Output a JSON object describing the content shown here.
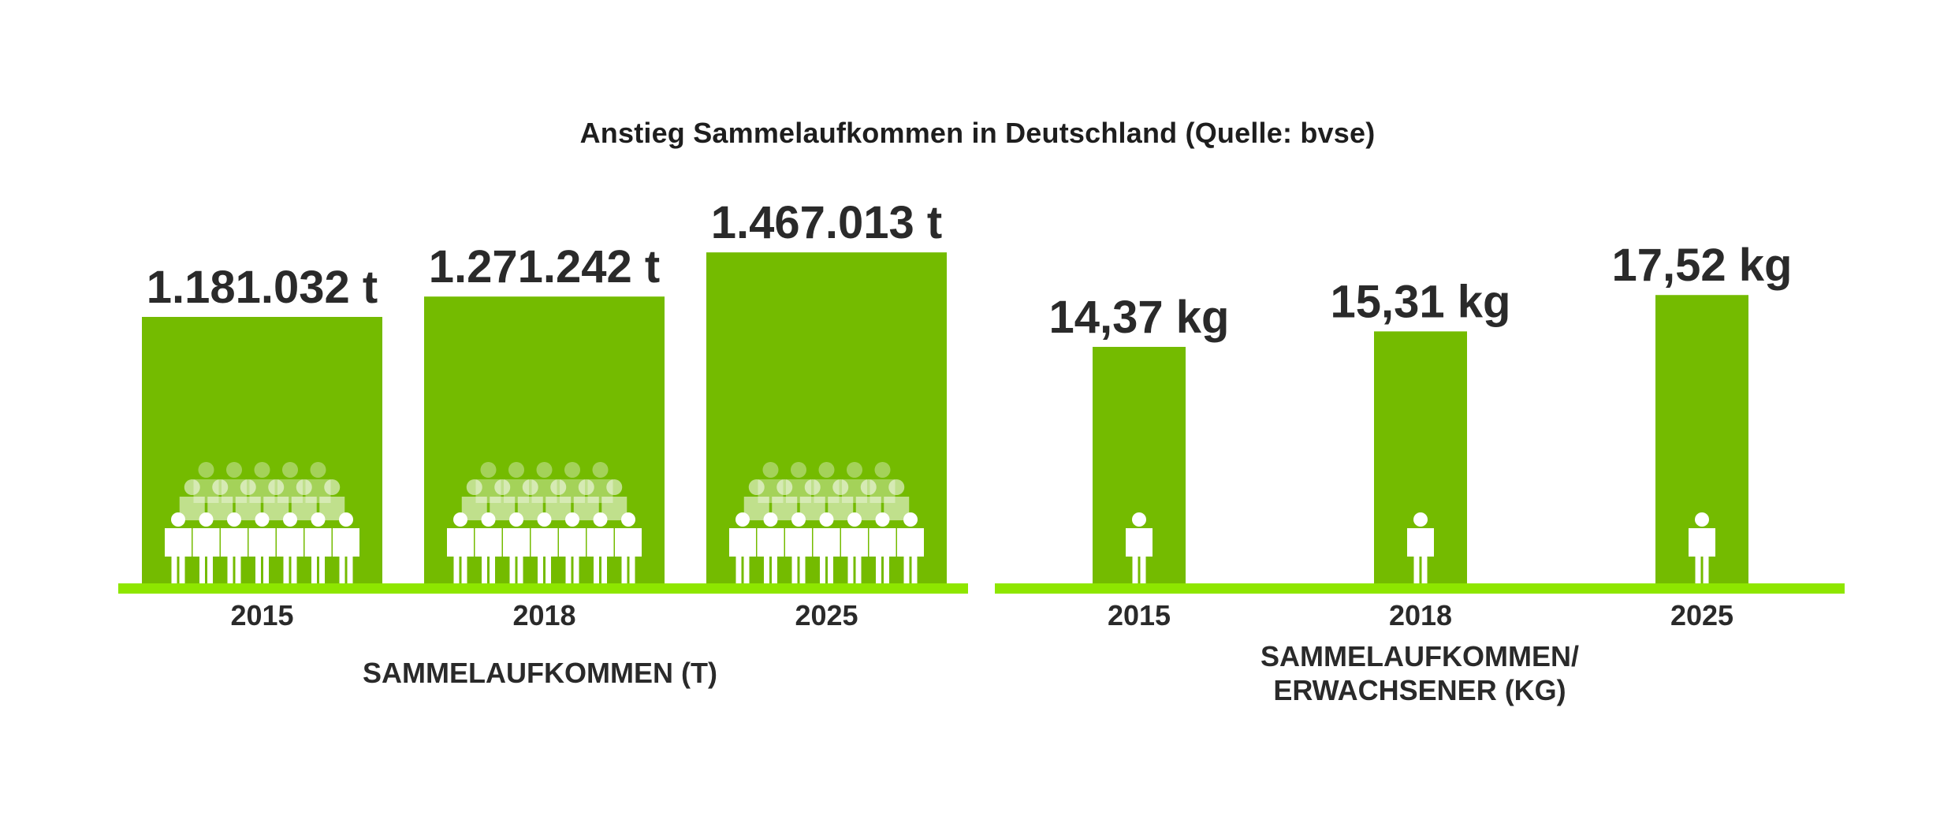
{
  "title": "Anstieg Sammelaufkommen in Deutschland (Quelle: bvse)",
  "colors": {
    "bar": "#74bb00",
    "baseline": "#8ee600",
    "figure": "#ffffff",
    "text": "#2a2a2a"
  },
  "chart_data": [
    {
      "type": "bar",
      "categories": [
        "2015",
        "2018",
        "2025"
      ],
      "values": [
        1181032,
        1271242,
        1467013
      ],
      "value_labels": [
        "1.181.032 t",
        "1.271.242 t",
        "1.467.013 t"
      ],
      "unit": "t",
      "xlabel": [
        "SAMMELAUFKOMMEN (T)"
      ],
      "icon": "crowd-icon",
      "grid": false,
      "legend": "none"
    },
    {
      "type": "bar",
      "categories": [
        "2015",
        "2018",
        "2025"
      ],
      "values": [
        14.37,
        15.31,
        17.52
      ],
      "value_labels": [
        "14,37 kg",
        "15,31 kg",
        "17,52 kg"
      ],
      "unit": "kg",
      "xlabel": [
        "SAMMELAUFKOMMEN/",
        "ERWACHSENER (KG)"
      ],
      "icon": "person-icon",
      "grid": false,
      "legend": "none"
    }
  ]
}
